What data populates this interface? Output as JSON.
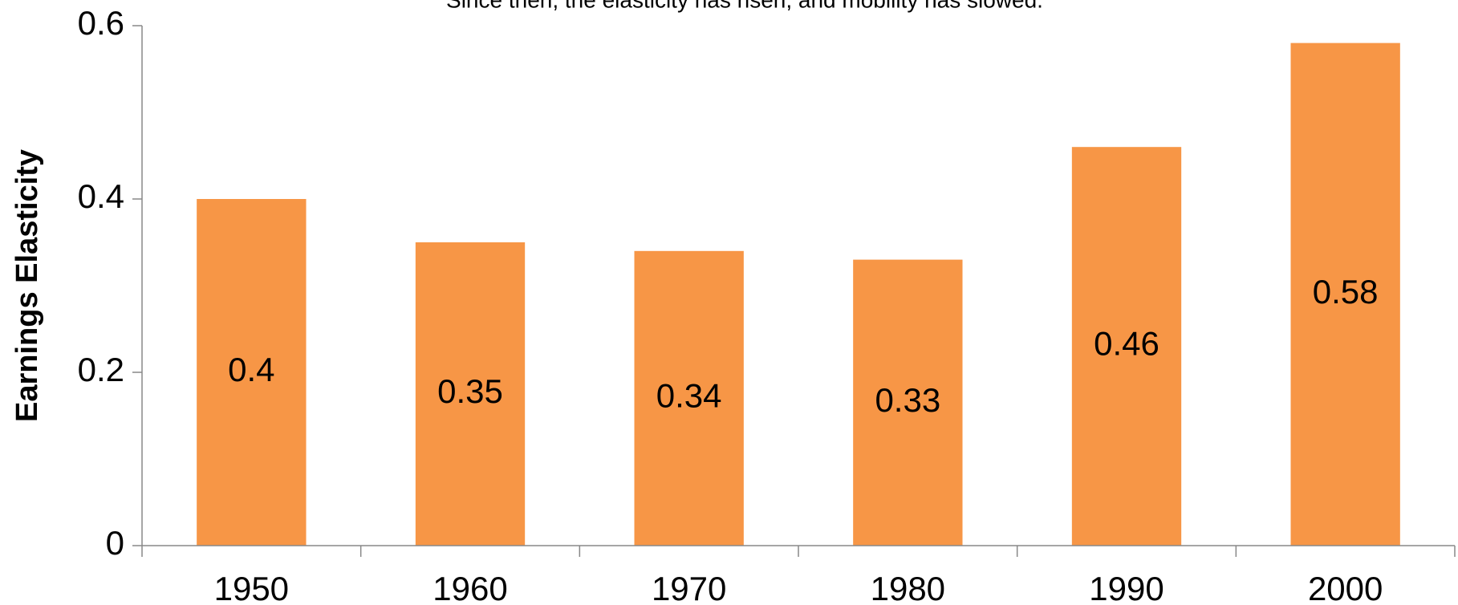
{
  "chart_data": {
    "type": "bar",
    "subtitle": "Since then, the elasticity has risen, and mobility has slowed.",
    "y_label": "Earnings Elasticity",
    "categories": [
      "1950",
      "1960",
      "1970",
      "1980",
      "1990",
      "2000"
    ],
    "values": [
      0.4,
      0.35,
      0.34,
      0.33,
      0.46,
      0.58
    ],
    "color": "#f79646",
    "ylim": [
      0,
      0.6
    ],
    "yticks": [
      0,
      0.2,
      0.4,
      0.6
    ],
    "grid": false
  }
}
